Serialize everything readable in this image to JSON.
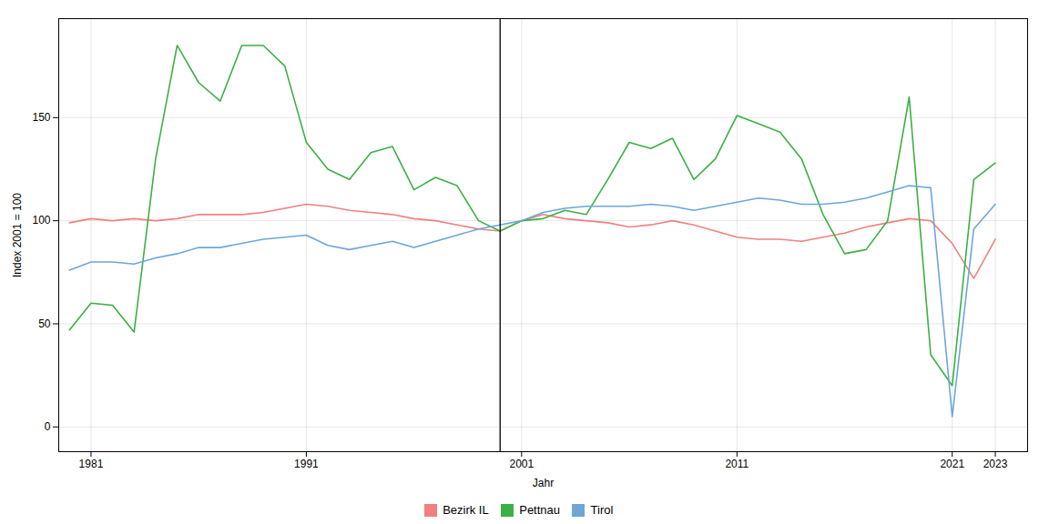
{
  "chart_data": {
    "type": "line",
    "xlabel": "Jahr",
    "ylabel": "Index 2001 = 100",
    "x": [
      1980,
      1981,
      1982,
      1983,
      1984,
      1985,
      1986,
      1987,
      1988,
      1989,
      1990,
      1991,
      1992,
      1993,
      1994,
      1995,
      1996,
      1997,
      1998,
      1999,
      2000,
      2001,
      2002,
      2003,
      2004,
      2005,
      2006,
      2007,
      2008,
      2009,
      2010,
      2011,
      2012,
      2013,
      2014,
      2015,
      2016,
      2017,
      2018,
      2019,
      2020,
      2021,
      2022,
      2023
    ],
    "series": [
      {
        "name": "Bezirk IL",
        "color": "#F08080",
        "values": [
          99,
          101,
          100,
          101,
          100,
          101,
          103,
          103,
          103,
          104,
          106,
          108,
          107,
          105,
          104,
          103,
          101,
          100,
          98,
          96,
          95,
          100,
          103,
          101,
          100,
          99,
          97,
          98,
          100,
          98,
          95,
          92,
          91,
          91,
          90,
          92,
          94,
          97,
          99,
          101,
          100,
          89,
          72,
          91
        ]
      },
      {
        "name": "Pettnau",
        "color": "#3CB044",
        "values": [
          47,
          60,
          59,
          46,
          130,
          185,
          167,
          158,
          185,
          185,
          175,
          138,
          125,
          120,
          133,
          136,
          115,
          121,
          117,
          100,
          95,
          100,
          101,
          105,
          103,
          120,
          138,
          135,
          140,
          120,
          130,
          151,
          147,
          143,
          130,
          103,
          84,
          86,
          100,
          160,
          35,
          20,
          120,
          128
        ]
      },
      {
        "name": "Tirol",
        "color": "#6EA6D8",
        "values": [
          76,
          80,
          80,
          79,
          82,
          84,
          87,
          87,
          89,
          91,
          92,
          93,
          88,
          86,
          88,
          90,
          87,
          90,
          93,
          96,
          98,
          100,
          104,
          106,
          107,
          107,
          107,
          108,
          107,
          105,
          107,
          109,
          111,
          110,
          108,
          108,
          109,
          111,
          114,
          117,
          116,
          5,
          96,
          108
        ]
      }
    ],
    "vline_x": 2000,
    "xlim": [
      1979.5,
      2024.5
    ],
    "ylim": [
      -12,
      198
    ],
    "xticks": [
      1981,
      1991,
      2001,
      2011,
      2021,
      2023
    ],
    "yticks": [
      0,
      50,
      100,
      150
    ],
    "grid": true,
    "legend": "bottom"
  }
}
